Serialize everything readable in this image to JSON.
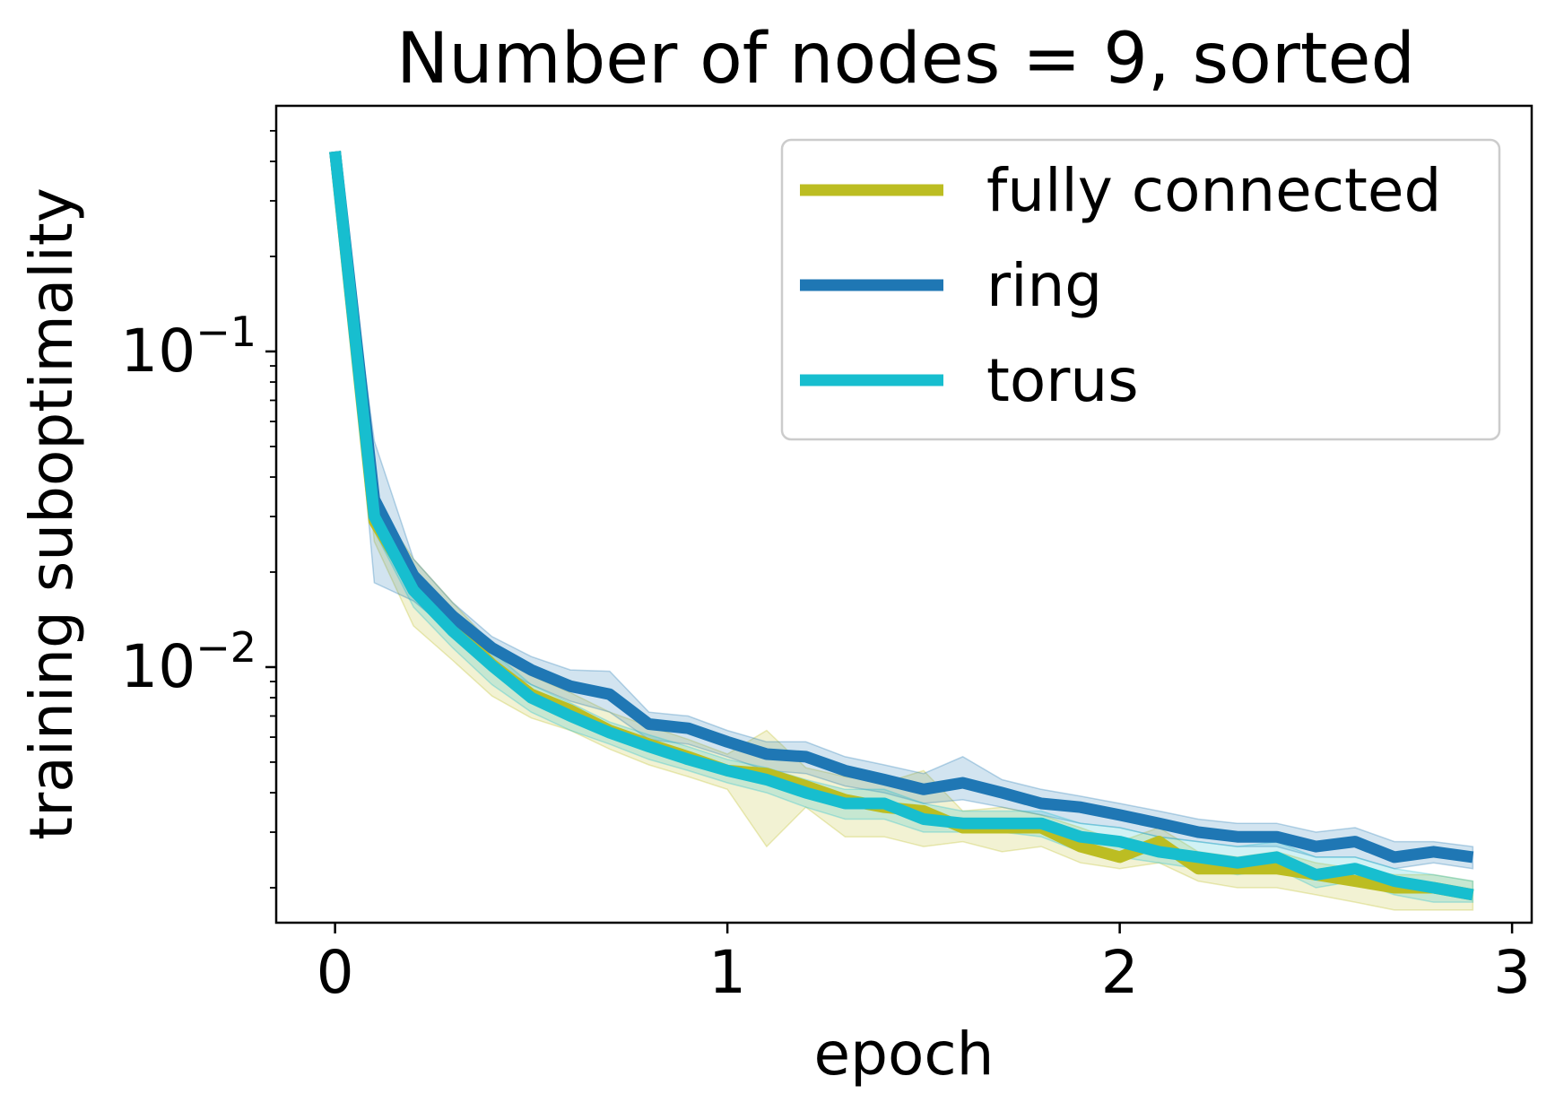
{
  "chart_data": {
    "type": "line",
    "title": "Number of nodes = 9, sorted",
    "xlabel": "epoch",
    "ylabel": "training suboptimality",
    "xlim": [
      -0.15,
      3.05
    ],
    "ylim": [
      0.00155,
      0.6
    ],
    "yscale": "log",
    "xticks": [
      {
        "value": 0,
        "label": "0"
      },
      {
        "value": 1,
        "label": "1"
      },
      {
        "value": 2,
        "label": "2"
      },
      {
        "value": 3,
        "label": "3"
      }
    ],
    "yticks": [
      {
        "value": 0.1,
        "base": "10",
        "exp": "−1"
      },
      {
        "value": 0.01,
        "base": "10",
        "exp": "−2"
      }
    ],
    "legend_position": "top-right",
    "grid": false,
    "x": [
      0,
      0.1,
      0.2,
      0.3,
      0.4,
      0.5,
      0.6,
      0.7,
      0.8,
      0.9,
      1.0,
      1.1,
      1.2,
      1.3,
      1.4,
      1.5,
      1.6,
      1.7,
      1.8,
      1.9,
      2.0,
      2.1,
      2.2,
      2.3,
      2.4,
      2.5,
      2.6,
      2.7,
      2.8,
      2.9
    ],
    "series": [
      {
        "name": "fully connected",
        "color": "#bcbd22",
        "values": [
          0.43,
          0.029,
          0.018,
          0.0135,
          0.0102,
          0.0082,
          0.0073,
          0.0063,
          0.0057,
          0.0052,
          0.0047,
          0.0046,
          0.0042,
          0.0038,
          0.0036,
          0.0035,
          0.0031,
          0.0031,
          0.0031,
          0.0027,
          0.0025,
          0.0028,
          0.0023,
          0.0023,
          0.0023,
          0.0022,
          0.0021,
          0.002,
          0.002,
          0.0019
        ],
        "lower": [
          0.43,
          0.025,
          0.0135,
          0.0105,
          0.0081,
          0.0069,
          0.0063,
          0.0055,
          0.0049,
          0.0045,
          0.0041,
          0.0027,
          0.0036,
          0.0029,
          0.0029,
          0.0027,
          0.0028,
          0.0026,
          0.0027,
          0.0024,
          0.0023,
          0.0024,
          0.0021,
          0.002,
          0.002,
          0.0019,
          0.0018,
          0.0017,
          0.0017,
          0.0017
        ],
        "upper": [
          0.43,
          0.034,
          0.022,
          0.016,
          0.0118,
          0.0094,
          0.0083,
          0.0072,
          0.0065,
          0.0059,
          0.0053,
          0.0063,
          0.0048,
          0.0045,
          0.0043,
          0.0047,
          0.0035,
          0.0036,
          0.0034,
          0.0031,
          0.0028,
          0.0031,
          0.0026,
          0.0025,
          0.0026,
          0.0024,
          0.0023,
          0.0022,
          0.0022,
          0.0021
        ]
      },
      {
        "name": "ring",
        "color": "#1f77b4",
        "values": [
          0.43,
          0.034,
          0.0195,
          0.0145,
          0.0115,
          0.0098,
          0.0087,
          0.0082,
          0.0066,
          0.0064,
          0.0058,
          0.0053,
          0.0052,
          0.0047,
          0.0044,
          0.0041,
          0.0043,
          0.004,
          0.0037,
          0.0036,
          0.0034,
          0.0032,
          0.003,
          0.0029,
          0.0029,
          0.0027,
          0.0028,
          0.0025,
          0.0026,
          0.0025
        ],
        "lower": [
          0.43,
          0.0185,
          0.0162,
          0.0128,
          0.0102,
          0.0088,
          0.0078,
          0.0072,
          0.0059,
          0.0057,
          0.0052,
          0.0047,
          0.0046,
          0.0042,
          0.004,
          0.0037,
          0.0038,
          0.0036,
          0.0034,
          0.0032,
          0.0031,
          0.0029,
          0.0028,
          0.0027,
          0.0027,
          0.0025,
          0.0025,
          0.0023,
          0.0024,
          0.0023
        ],
        "upper": [
          0.43,
          0.052,
          0.022,
          0.016,
          0.0125,
          0.0108,
          0.0098,
          0.0097,
          0.0072,
          0.007,
          0.0063,
          0.0058,
          0.0058,
          0.0052,
          0.0049,
          0.0046,
          0.0052,
          0.0044,
          0.0041,
          0.0039,
          0.0037,
          0.0035,
          0.0033,
          0.0032,
          0.0032,
          0.003,
          0.0031,
          0.0028,
          0.0028,
          0.0027
        ]
      },
      {
        "name": "torus",
        "color": "#17becf",
        "values": [
          0.43,
          0.03,
          0.0175,
          0.013,
          0.0101,
          0.008,
          0.007,
          0.0062,
          0.0056,
          0.0051,
          0.0047,
          0.0044,
          0.004,
          0.0037,
          0.0037,
          0.0033,
          0.0032,
          0.0032,
          0.0032,
          0.0029,
          0.0028,
          0.0026,
          0.0025,
          0.0024,
          0.0025,
          0.0022,
          0.0023,
          0.0021,
          0.002,
          0.0019
        ],
        "lower": [
          0.43,
          0.027,
          0.0155,
          0.0115,
          0.0088,
          0.0072,
          0.0063,
          0.0057,
          0.0051,
          0.0047,
          0.0043,
          0.004,
          0.0036,
          0.0033,
          0.0033,
          0.003,
          0.003,
          0.003,
          0.0029,
          0.0026,
          0.0025,
          0.0024,
          0.0023,
          0.0022,
          0.0023,
          0.002,
          0.0021,
          0.0019,
          0.0018,
          0.0018
        ],
        "upper": [
          0.43,
          0.033,
          0.0195,
          0.0145,
          0.0112,
          0.0088,
          0.0077,
          0.0067,
          0.0061,
          0.0056,
          0.0051,
          0.0048,
          0.0044,
          0.0041,
          0.0041,
          0.0037,
          0.0035,
          0.0035,
          0.0035,
          0.0032,
          0.0031,
          0.0029,
          0.0028,
          0.0027,
          0.0028,
          0.0025,
          0.0025,
          0.0023,
          0.0022,
          0.0021
        ]
      }
    ]
  }
}
